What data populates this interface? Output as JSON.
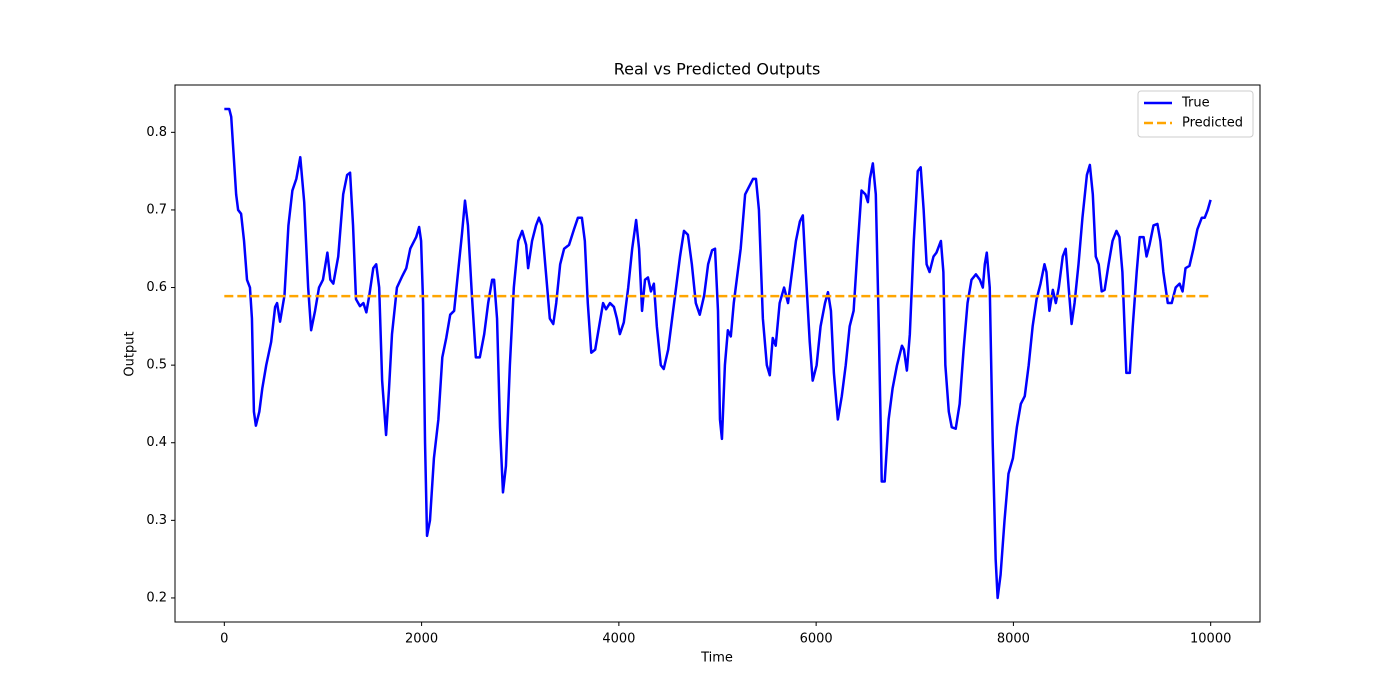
{
  "chart_data": {
    "type": "line",
    "title": "Real vs Predicted Outputs",
    "x_label": "Time",
    "y_label": "Output",
    "xlim": [
      -500,
      10500
    ],
    "xticks": [
      0,
      2000,
      4000,
      6000,
      8000,
      10000
    ],
    "ylim": [
      0.169,
      0.861
    ],
    "yticks": [
      0.2,
      0.3,
      0.4,
      0.5,
      0.6,
      0.7,
      0.8
    ],
    "legend": "upper right",
    "series": [
      {
        "name": "True",
        "color": "#0000ff",
        "linestyle": "solid",
        "x": [
          0,
          50,
          70,
          120,
          140,
          170,
          200,
          230,
          260,
          280,
          300,
          320,
          355,
          385,
          425,
          475,
          515,
          535,
          565,
          610,
          650,
          690,
          730,
          770,
          810,
          850,
          880,
          920,
          960,
          1000,
          1045,
          1075,
          1105,
          1155,
          1205,
          1245,
          1275,
          1305,
          1335,
          1375,
          1410,
          1440,
          1470,
          1510,
          1540,
          1570,
          1600,
          1640,
          1670,
          1700,
          1750,
          1805,
          1845,
          1885,
          1925,
          1945,
          1975,
          1995,
          2015,
          2035,
          2055,
          2085,
          2125,
          2170,
          2210,
          2250,
          2290,
          2330,
          2370,
          2410,
          2440,
          2470,
          2510,
          2550,
          2590,
          2635,
          2675,
          2715,
          2735,
          2765,
          2795,
          2825,
          2855,
          2895,
          2935,
          2980,
          3020,
          3060,
          3080,
          3120,
          3160,
          3190,
          3220,
          3260,
          3300,
          3335,
          3365,
          3405,
          3445,
          3495,
          3545,
          3585,
          3625,
          3655,
          3685,
          3720,
          3760,
          3800,
          3840,
          3870,
          3910,
          3950,
          3980,
          4010,
          4050,
          4095,
          4135,
          4175,
          4205,
          4235,
          4265,
          4295,
          4325,
          4355,
          4385,
          4425,
          4455,
          4500,
          4540,
          4580,
          4620,
          4660,
          4700,
          4740,
          4780,
          4820,
          4865,
          4905,
          4945,
          4975,
          5005,
          5025,
          5045,
          5075,
          5105,
          5135,
          5165,
          5195,
          5235,
          5280,
          5320,
          5360,
          5390,
          5420,
          5460,
          5500,
          5530,
          5560,
          5590,
          5630,
          5675,
          5715,
          5755,
          5795,
          5835,
          5865,
          5895,
          5935,
          5965,
          6005,
          6045,
          6090,
          6120,
          6150,
          6180,
          6220,
          6260,
          6300,
          6340,
          6380,
          6420,
          6460,
          6500,
          6525,
          6545,
          6575,
          6605,
          6635,
          6665,
          6695,
          6735,
          6775,
          6820,
          6870,
          6890,
          6920,
          6950,
          6990,
          7030,
          7060,
          7090,
          7120,
          7150,
          7190,
          7220,
          7265,
          7290,
          7310,
          7345,
          7375,
          7415,
          7455,
          7495,
          7535,
          7575,
          7620,
          7660,
          7690,
          7710,
          7730,
          7760,
          7790,
          7820,
          7840,
          7870,
          7910,
          7950,
          7995,
          8035,
          8075,
          8115,
          8155,
          8195,
          8235,
          8275,
          8315,
          8335,
          8365,
          8400,
          8430,
          8460,
          8500,
          8530,
          8560,
          8590,
          8620,
          8660,
          8700,
          8745,
          8775,
          8805,
          8835,
          8865,
          8895,
          8925,
          8965,
          9005,
          9045,
          9075,
          9105,
          9145,
          9180,
          9210,
          9250,
          9280,
          9320,
          9350,
          9380,
          9420,
          9460,
          9490,
          9520,
          9565,
          9605,
          9645,
          9685,
          9715,
          9745,
          9785,
          9825,
          9865,
          9910,
          9940,
          9970,
          9999
        ],
        "values": [
          0.83,
          0.83,
          0.82,
          0.72,
          0.7,
          0.695,
          0.66,
          0.61,
          0.6,
          0.56,
          0.44,
          0.422,
          0.44,
          0.47,
          0.5,
          0.53,
          0.575,
          0.58,
          0.556,
          0.59,
          0.68,
          0.725,
          0.74,
          0.768,
          0.71,
          0.6,
          0.545,
          0.57,
          0.6,
          0.61,
          0.645,
          0.61,
          0.605,
          0.64,
          0.72,
          0.745,
          0.748,
          0.68,
          0.585,
          0.576,
          0.58,
          0.568,
          0.59,
          0.625,
          0.63,
          0.6,
          0.48,
          0.41,
          0.47,
          0.54,
          0.6,
          0.615,
          0.625,
          0.65,
          0.66,
          0.665,
          0.678,
          0.66,
          0.58,
          0.4,
          0.28,
          0.3,
          0.38,
          0.43,
          0.51,
          0.535,
          0.565,
          0.57,
          0.62,
          0.67,
          0.712,
          0.68,
          0.59,
          0.51,
          0.51,
          0.54,
          0.58,
          0.61,
          0.61,
          0.56,
          0.42,
          0.336,
          0.37,
          0.5,
          0.6,
          0.66,
          0.673,
          0.655,
          0.625,
          0.66,
          0.68,
          0.69,
          0.68,
          0.62,
          0.56,
          0.553,
          0.58,
          0.63,
          0.65,
          0.655,
          0.675,
          0.69,
          0.69,
          0.66,
          0.58,
          0.516,
          0.52,
          0.55,
          0.58,
          0.572,
          0.58,
          0.575,
          0.56,
          0.54,
          0.555,
          0.6,
          0.65,
          0.687,
          0.65,
          0.57,
          0.61,
          0.613,
          0.595,
          0.605,
          0.55,
          0.5,
          0.495,
          0.52,
          0.56,
          0.6,
          0.64,
          0.673,
          0.668,
          0.63,
          0.58,
          0.565,
          0.59,
          0.63,
          0.648,
          0.65,
          0.57,
          0.43,
          0.405,
          0.5,
          0.545,
          0.537,
          0.58,
          0.61,
          0.65,
          0.72,
          0.73,
          0.74,
          0.74,
          0.7,
          0.56,
          0.5,
          0.487,
          0.535,
          0.525,
          0.58,
          0.6,
          0.58,
          0.62,
          0.66,
          0.685,
          0.693,
          0.62,
          0.53,
          0.48,
          0.5,
          0.55,
          0.58,
          0.594,
          0.57,
          0.49,
          0.43,
          0.46,
          0.5,
          0.55,
          0.57,
          0.65,
          0.725,
          0.72,
          0.71,
          0.74,
          0.76,
          0.72,
          0.55,
          0.35,
          0.35,
          0.43,
          0.47,
          0.5,
          0.525,
          0.52,
          0.493,
          0.54,
          0.66,
          0.75,
          0.755,
          0.7,
          0.63,
          0.62,
          0.64,
          0.645,
          0.66,
          0.62,
          0.5,
          0.44,
          0.42,
          0.418,
          0.45,
          0.52,
          0.58,
          0.61,
          0.617,
          0.61,
          0.6,
          0.63,
          0.645,
          0.6,
          0.4,
          0.25,
          0.2,
          0.23,
          0.3,
          0.36,
          0.38,
          0.42,
          0.45,
          0.46,
          0.5,
          0.55,
          0.585,
          0.605,
          0.63,
          0.62,
          0.57,
          0.597,
          0.58,
          0.6,
          0.64,
          0.65,
          0.6,
          0.553,
          0.58,
          0.63,
          0.69,
          0.745,
          0.758,
          0.72,
          0.64,
          0.63,
          0.595,
          0.597,
          0.63,
          0.66,
          0.673,
          0.665,
          0.62,
          0.49,
          0.49,
          0.55,
          0.62,
          0.665,
          0.665,
          0.64,
          0.655,
          0.68,
          0.682,
          0.66,
          0.62,
          0.58,
          0.58,
          0.6,
          0.605,
          0.595,
          0.625,
          0.628,
          0.65,
          0.675,
          0.69,
          0.69,
          0.7,
          0.713
        ]
      },
      {
        "name": "Predicted",
        "color": "#ffa500",
        "linestyle": "dashed",
        "x": [
          0,
          9999
        ],
        "values": [
          0.589,
          0.589
        ]
      }
    ]
  }
}
